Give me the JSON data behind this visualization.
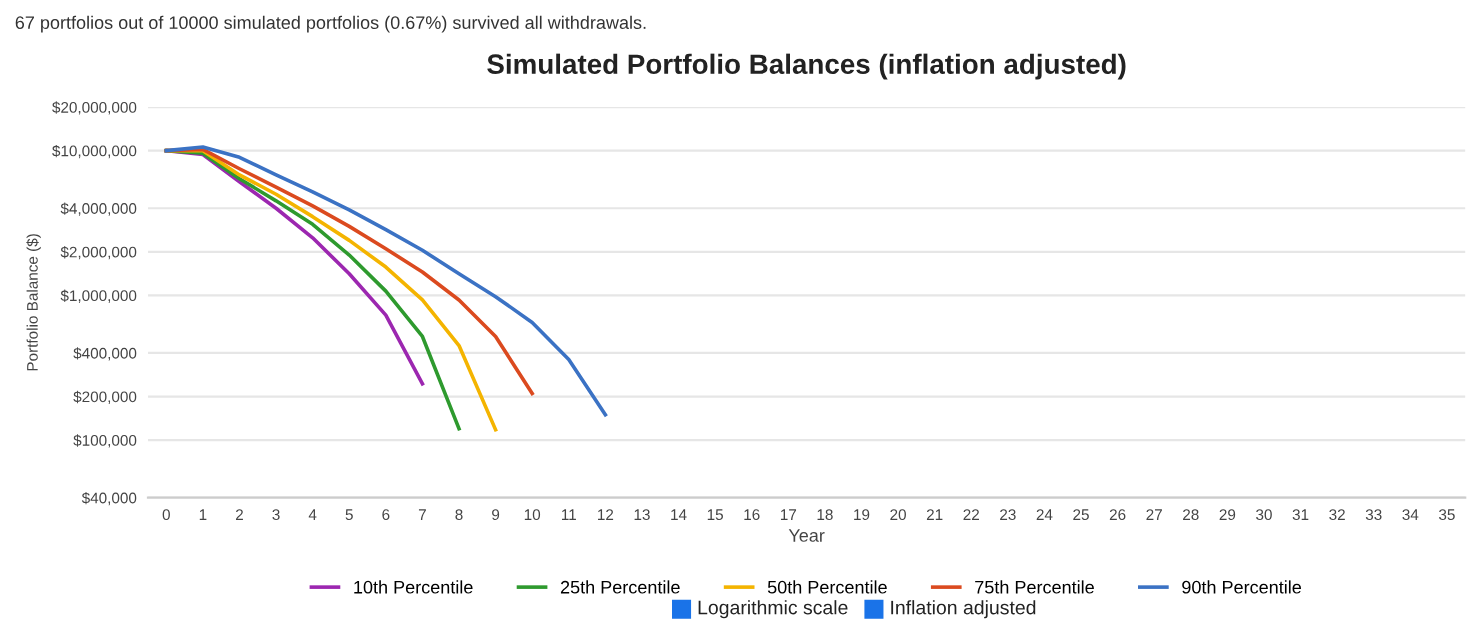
{
  "chart_data": {
    "type": "line",
    "title": "Simulated Portfolio Balances (inflation adjusted)",
    "xlabel": "Year",
    "ylabel": "Portfolio Balance ($)",
    "annotations": [
      "67 portfolios out of 10000 simulated portfolios (0.67%) survived all withdrawals.",
      "Logarithmic scale",
      "Inflation adjusted"
    ],
    "x": [
      0,
      1,
      2,
      3,
      4,
      5,
      6,
      7,
      8,
      9,
      10,
      11,
      12
    ],
    "series": [
      {
        "name": "10th Percentile",
        "color": "#9c27b0",
        "values": [
          10000000,
          9400000,
          6100000,
          4000000,
          2500000,
          1410000,
          730000,
          245000,
          null,
          null,
          null,
          null,
          null
        ]
      },
      {
        "name": "25th Percentile",
        "color": "#2e9a2e",
        "values": [
          10000000,
          9600000,
          6400000,
          4500000,
          3100000,
          1900000,
          1070000,
          520000,
          120000,
          null,
          null,
          null,
          null
        ]
      },
      {
        "name": "50th Percentile",
        "color": "#f4b400",
        "values": [
          10000000,
          10000000,
          6800000,
          5000000,
          3500000,
          2400000,
          1570000,
          930000,
          450000,
          118000,
          null,
          null,
          null
        ]
      },
      {
        "name": "75th Percentile",
        "color": "#db4a1f",
        "values": [
          10000000,
          10200000,
          7500000,
          5600000,
          4150000,
          3000000,
          2100000,
          1450000,
          930000,
          520000,
          210000,
          null,
          null
        ]
      },
      {
        "name": "90th Percentile",
        "color": "#3b72c4",
        "values": [
          10000000,
          10600000,
          9000000,
          6800000,
          5200000,
          3900000,
          2850000,
          2050000,
          1410000,
          980000,
          650000,
          360000,
          150000
        ]
      }
    ],
    "log": "y",
    "grid": "y",
    "legend": "bottom",
    "marker": "none",
    "line_style": "solid",
    "xlim": [
      -0.5,
      35.5
    ],
    "xticks": [
      0,
      1,
      2,
      3,
      4,
      5,
      6,
      7,
      8,
      9,
      10,
      11,
      12,
      13,
      14,
      15,
      16,
      17,
      18,
      19,
      20,
      21,
      22,
      23,
      24,
      25,
      26,
      27,
      28,
      29,
      30,
      31,
      32,
      33,
      34,
      35
    ],
    "ylim": [
      40000,
      20000000
    ],
    "yticks": [
      {
        "value": 40000,
        "label": "$40,000"
      },
      {
        "value": 100000,
        "label": "$100,000"
      },
      {
        "value": 200000,
        "label": "$200,000"
      },
      {
        "value": 400000,
        "label": "$400,000"
      },
      {
        "value": 1000000,
        "label": "$1,000,000"
      },
      {
        "value": 2000000,
        "label": "$2,000,000"
      },
      {
        "value": 4000000,
        "label": "$4,000,000"
      },
      {
        "value": 10000000,
        "label": "$10,000,000"
      },
      {
        "value": 20000000,
        "label": "$20,000,000"
      }
    ]
  }
}
